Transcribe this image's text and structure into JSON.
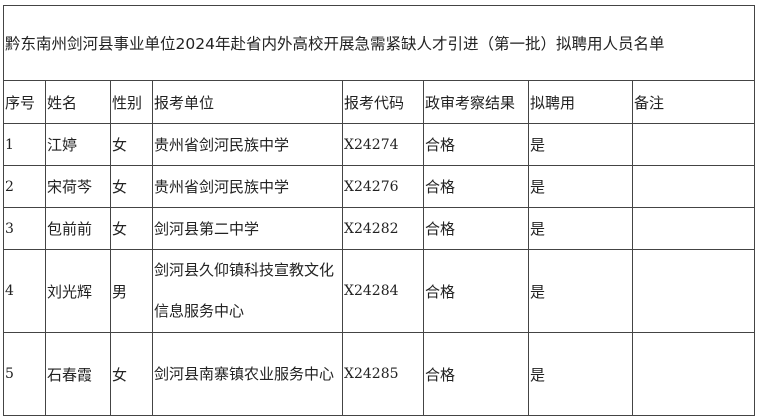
{
  "title": "黔东南州剑河县事业单位2024年赴省内外高校开展急需紧缺人才引进（第一批）拟聘用人员名单",
  "headers": [
    "序号",
    "姓名",
    "性别",
    "报考单位",
    "报考代码",
    "政审考察结果",
    "拟聘用",
    "备注"
  ],
  "rows": [
    {
      "no": "1",
      "name": "江婷",
      "gender": "女",
      "unit": "贵州省剑河民族中学",
      "code": "X24274",
      "result": "合格",
      "hire": "是",
      "note": ""
    },
    {
      "no": "2",
      "name": "宋荷芩",
      "gender": "女",
      "unit": "贵州省剑河民族中学",
      "code": "X24276",
      "result": "合格",
      "hire": "是",
      "note": ""
    },
    {
      "no": "3",
      "name": "包前前",
      "gender": "女",
      "unit": "剑河县第二中学",
      "code": "X24282",
      "result": "合格",
      "hire": "是",
      "note": ""
    },
    {
      "no": "4",
      "name": "刘光辉",
      "gender": "男",
      "unit": "剑河县久仰镇科技宣教文化信息服务中心",
      "code": "X24284",
      "result": "合格",
      "hire": "是",
      "note": ""
    },
    {
      "no": "5",
      "name": "石春霞",
      "gender": "女",
      "unit": "剑河县南寨镇农业服务中心",
      "code": "X24285",
      "result": "合格",
      "hire": "是",
      "note": ""
    }
  ]
}
